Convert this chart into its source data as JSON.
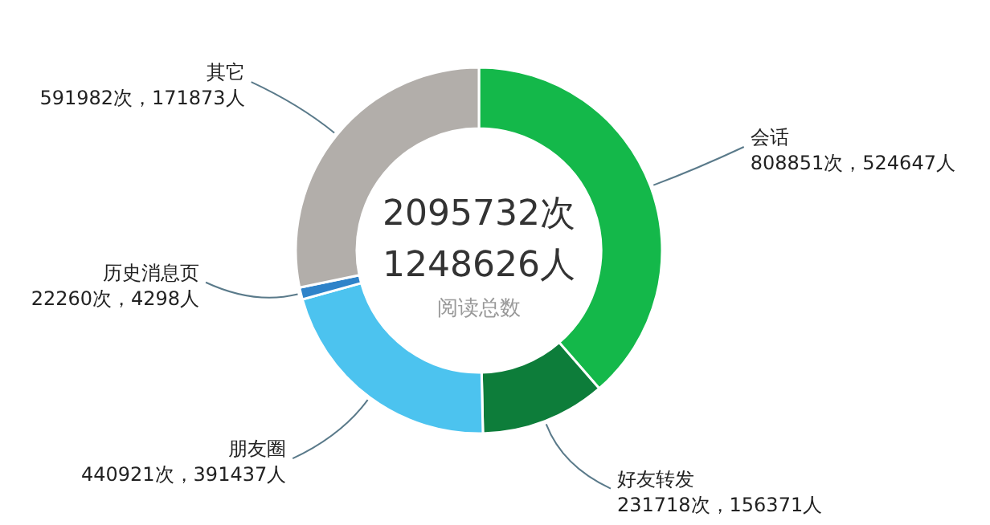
{
  "chart_data": {
    "type": "donut",
    "categories": [
      "会话",
      "好友转发",
      "朋友圈",
      "历史消息页",
      "其它"
    ],
    "values": [
      808851,
      231718,
      440921,
      22260,
      591982
    ],
    "colors": [
      "#14b84a",
      "#0d7d3a",
      "#4cc3ef",
      "#2f83c9",
      "#b2aeaa"
    ],
    "value_labels": [
      "808851次，524647人",
      "231718次，156371人",
      "440921次，391437人",
      "22260次，4298人",
      "591982次，171873人"
    ],
    "annotations": [
      "2095732次",
      "1248626人",
      "阅读总数"
    ]
  }
}
